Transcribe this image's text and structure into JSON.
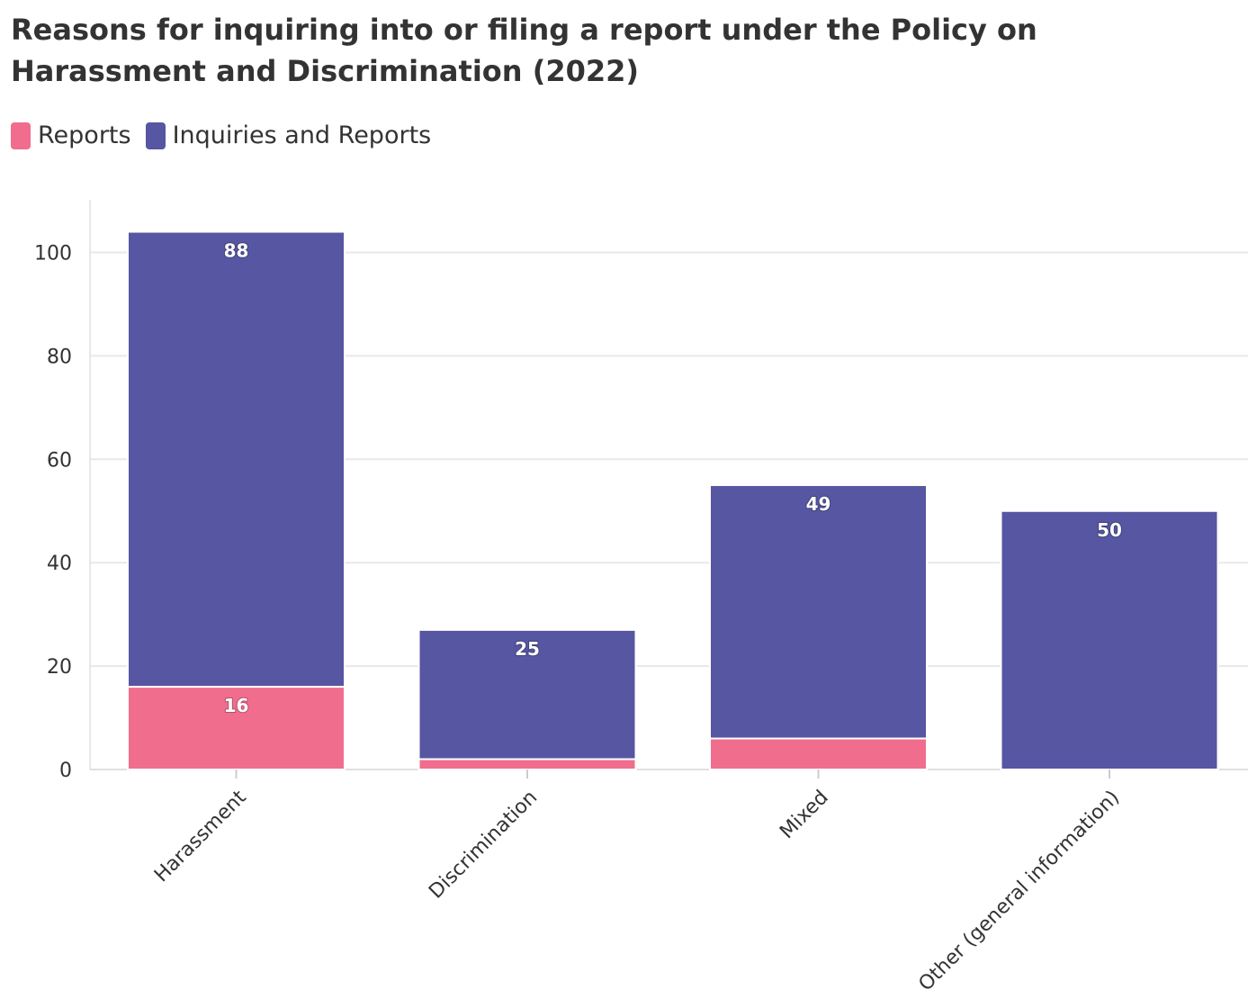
{
  "chart_data": {
    "type": "bar",
    "stacked": true,
    "title": "Reasons for inquiring into or filing a report under the Policy on Harassment and Discrimination (2022)",
    "categories": [
      "Harassment",
      "Discrimination",
      "Mixed",
      "Other (general information)"
    ],
    "series": [
      {
        "name": "Reports",
        "color": "#f06d8e",
        "values": [
          16,
          2,
          6,
          0
        ],
        "labels": [
          "16",
          "",
          "",
          ""
        ]
      },
      {
        "name": "Inquiries and Reports",
        "color": "#5656a2",
        "values": [
          88,
          25,
          49,
          50
        ],
        "labels": [
          "88",
          "25",
          "49",
          "50"
        ]
      }
    ],
    "ylim": [
      0,
      110
    ],
    "yticks": [
      0,
      20,
      40,
      60,
      80,
      100
    ],
    "grid": true,
    "legend_position": "top-left"
  }
}
